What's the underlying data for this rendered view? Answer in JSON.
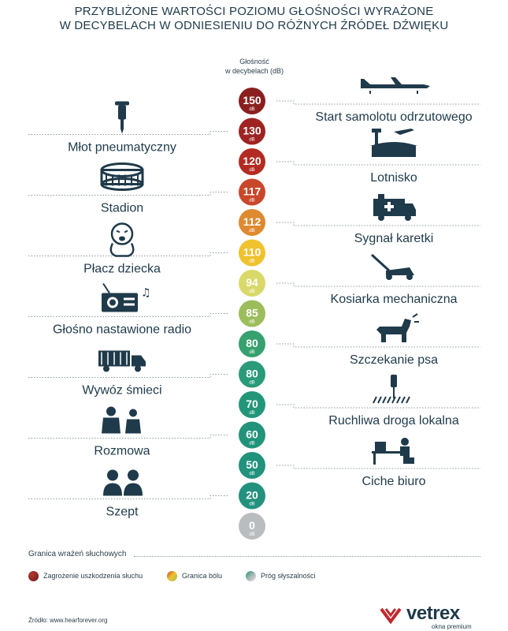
{
  "header": {
    "title_line1": "PRZYBLIŻONE WARTOŚCI POZIOMU GŁOŚNOŚCI WYRAŻONE",
    "title_line2": "W DECYBELACH W ODNIESIENIU DO RÓŻNYCH ŹRÓDEŁ DŹWIĘKU"
  },
  "axis": {
    "title_line1": "Głośność",
    "title_line2": "w decybelach (dB)",
    "unit": "dB"
  },
  "chart_data": {
    "type": "table",
    "title": "PRZYBLIŻONE WARTOŚCI POZIOMU GŁOŚNOŚCI WYRAŻONE W DECYBELACH W ODNIESIENIU DO RÓŻNYCH ŹRÓDEŁ DŹWIĘKU",
    "ylabel": "Głośność w decybelach (dB)",
    "unit": "dB",
    "levels": [
      {
        "value": 150,
        "label": "Start samolotu odrzutowego",
        "side": "right",
        "icon": "airplane-icon",
        "color": "#8b1f1f"
      },
      {
        "value": 130,
        "label": "Młot pneumatyczny",
        "side": "left",
        "icon": "jackhammer-icon",
        "color": "#9e2321"
      },
      {
        "value": 120,
        "label": "Lotnisko",
        "side": "right",
        "icon": "airport-icon",
        "color": "#b32b22"
      },
      {
        "value": 117,
        "label": "Stadion",
        "side": "left",
        "icon": "stadium-icon",
        "color": "#c9472a"
      },
      {
        "value": 112,
        "label": "Sygnał karetki",
        "side": "right",
        "icon": "ambulance-icon",
        "color": "#de8a31"
      },
      {
        "value": 110,
        "label": "Płacz dziecka",
        "side": "left",
        "icon": "crying-baby-icon",
        "color": "#efc22e"
      },
      {
        "value": 94,
        "label": "Kosiarka mechaniczna",
        "side": "right",
        "icon": "lawnmower-icon",
        "color": "#d9d96a"
      },
      {
        "value": 85,
        "label": "Głośno nastawione radio",
        "side": "left",
        "icon": "radio-icon",
        "color": "#9cbd5c"
      },
      {
        "value": 80,
        "label": "Szczekanie psa",
        "side": "right",
        "icon": "dog-icon",
        "color": "#37a06f"
      },
      {
        "value": 80,
        "label": "Wywóz śmieci",
        "side": "left",
        "icon": "garbage-truck-icon",
        "color": "#2a9a78"
      },
      {
        "value": 70,
        "label": "Ruchliwa droga lokalna",
        "side": "right",
        "icon": "traffic-light-icon",
        "color": "#23967a"
      },
      {
        "value": 60,
        "label": "Rozmowa",
        "side": "left",
        "icon": "conversation-icon",
        "color": "#21937b"
      },
      {
        "value": 50,
        "label": "Ciche biuro",
        "side": "right",
        "icon": "office-icon",
        "color": "#21927c"
      },
      {
        "value": 20,
        "label": "Szept",
        "side": "left",
        "icon": "whisper-icon",
        "color": "#22917d"
      },
      {
        "value": 0,
        "label": "",
        "side": "none",
        "icon": "",
        "color": "#b9bdbf"
      }
    ]
  },
  "legend": {
    "heading": "Granica wrażeń słuchowych",
    "items": [
      {
        "label": "Zagrożenie uszkodzenia słuchu",
        "color": "#8b1f1f"
      },
      {
        "label": "Granica bólu",
        "color": "#e0a030"
      },
      {
        "label": "Próg słyszalności",
        "color": "#b9bdbf"
      }
    ]
  },
  "footer": {
    "source": "Źródło:  www.hearforever.org",
    "brand": "vetrex",
    "brand_sub": "okna premium",
    "brand_color": "#c0292f"
  }
}
